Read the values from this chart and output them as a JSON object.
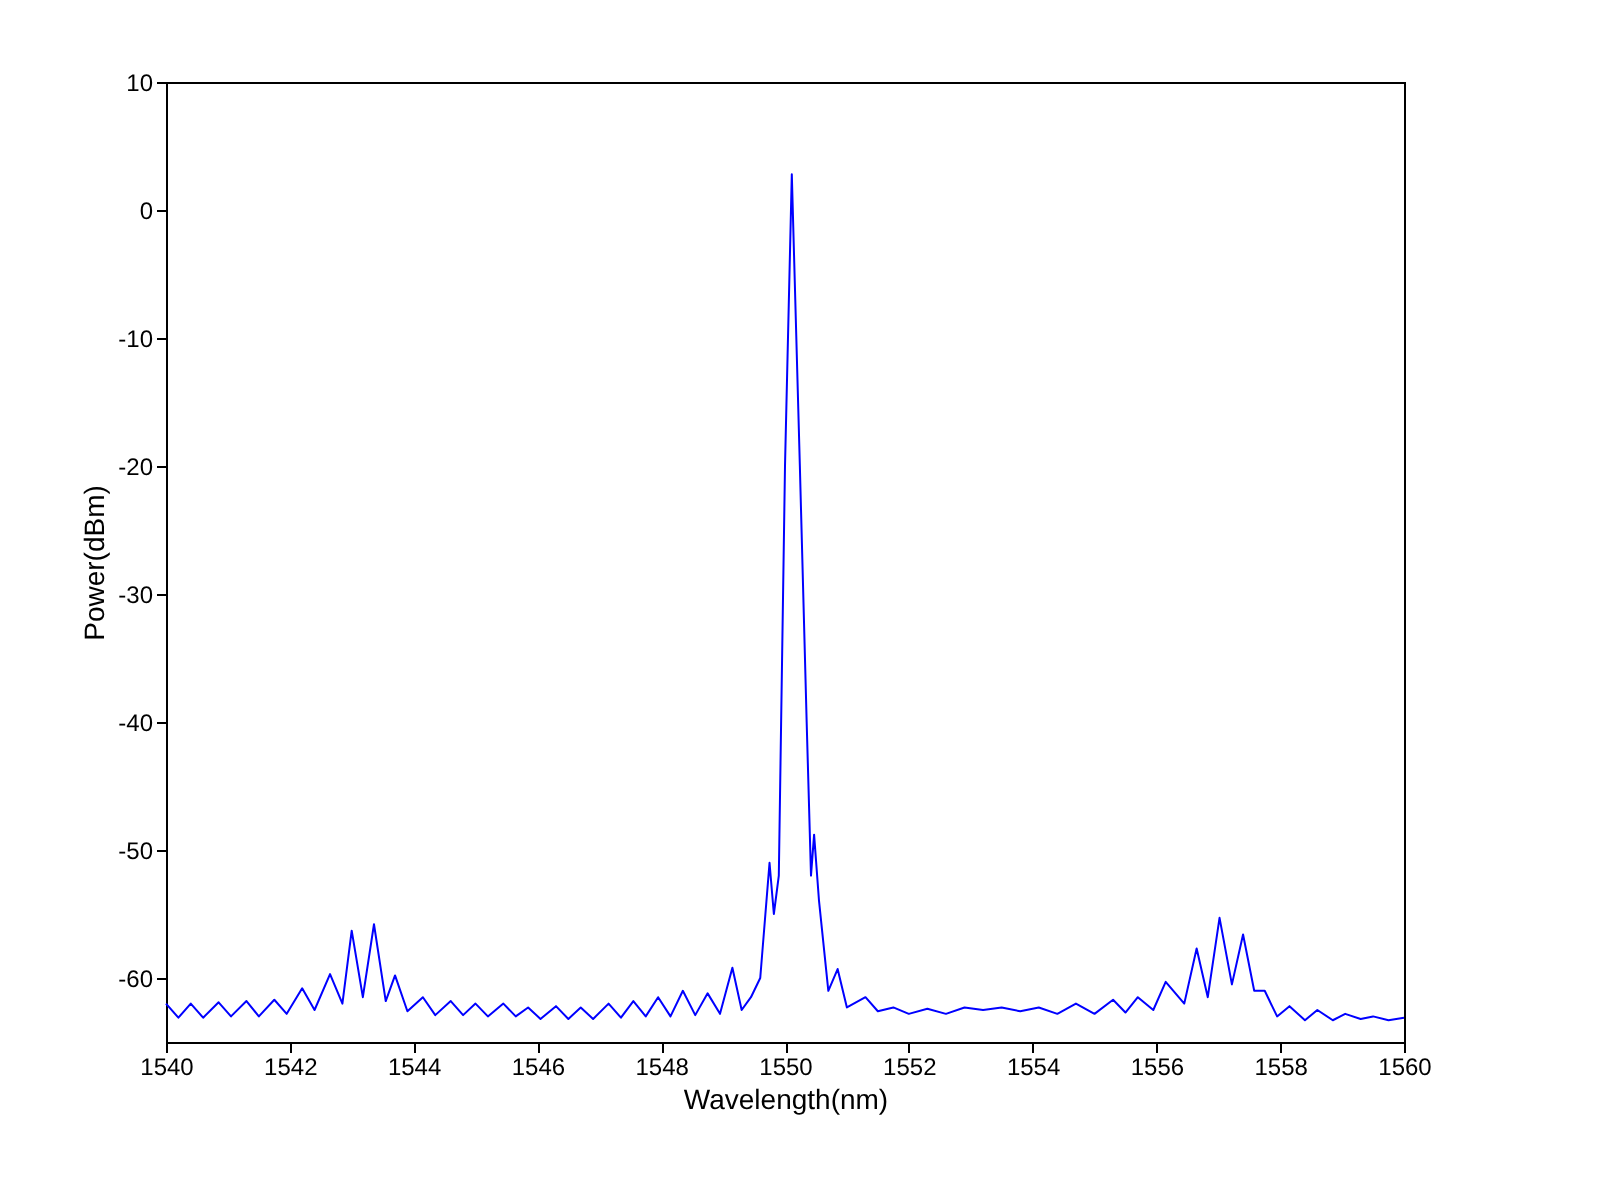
{
  "chart_data": {
    "type": "line",
    "xlabel": "Wavelength(nm)",
    "ylabel": "Power(dBm)",
    "xlim": [
      1540,
      1560
    ],
    "ylim": [
      -65,
      10
    ],
    "xticks": [
      1540,
      1542,
      1544,
      1546,
      1548,
      1550,
      1552,
      1554,
      1556,
      1558,
      1560
    ],
    "yticks": [
      -60,
      -50,
      -40,
      -30,
      -20,
      -10,
      0,
      10
    ],
    "grid": false,
    "marker": "none",
    "line_style": "solid",
    "series": [
      {
        "color": "#0000ff",
        "x": [
          1540.0,
          1540.2,
          1540.4,
          1540.6,
          1540.85,
          1541.05,
          1541.3,
          1541.5,
          1541.75,
          1541.95,
          1542.2,
          1542.4,
          1542.65,
          1542.85,
          1543.0,
          1543.18,
          1543.36,
          1543.55,
          1543.7,
          1543.9,
          1544.15,
          1544.35,
          1544.6,
          1544.8,
          1545.0,
          1545.2,
          1545.45,
          1545.65,
          1545.85,
          1546.05,
          1546.3,
          1546.5,
          1546.7,
          1546.9,
          1547.15,
          1547.35,
          1547.55,
          1547.75,
          1547.95,
          1548.15,
          1548.35,
          1548.55,
          1548.75,
          1548.95,
          1549.15,
          1549.3,
          1549.45,
          1549.6,
          1549.75,
          1549.82,
          1549.9,
          1550.0,
          1550.11,
          1550.24,
          1550.35,
          1550.42,
          1550.47,
          1550.55,
          1550.7,
          1550.85,
          1551.0,
          1551.3,
          1551.5,
          1551.75,
          1552.0,
          1552.3,
          1552.6,
          1552.9,
          1553.2,
          1553.5,
          1553.8,
          1554.1,
          1554.4,
          1554.7,
          1555.0,
          1555.3,
          1555.5,
          1555.7,
          1555.95,
          1556.15,
          1556.45,
          1556.65,
          1556.83,
          1557.02,
          1557.22,
          1557.4,
          1557.58,
          1557.75,
          1557.95,
          1558.15,
          1558.4,
          1558.6,
          1558.85,
          1559.05,
          1559.3,
          1559.5,
          1559.75,
          1560.0
        ],
        "values": [
          -62.0,
          -63.1,
          -62.0,
          -63.1,
          -61.9,
          -63.0,
          -61.8,
          -63.0,
          -61.7,
          -62.8,
          -60.8,
          -62.5,
          -59.7,
          -62.0,
          -56.3,
          -61.5,
          -55.8,
          -61.8,
          -59.8,
          -62.6,
          -61.5,
          -62.9,
          -61.8,
          -62.9,
          -62.0,
          -63.0,
          -62.0,
          -63.0,
          -62.3,
          -63.2,
          -62.2,
          -63.2,
          -62.3,
          -63.2,
          -62.0,
          -63.1,
          -61.8,
          -63.0,
          -61.5,
          -63.0,
          -61.0,
          -62.9,
          -61.2,
          -62.8,
          -59.2,
          -62.5,
          -61.5,
          -60.0,
          -51.0,
          -55.0,
          -52.0,
          -20.0,
          2.8,
          -20.0,
          -40.0,
          -52.0,
          -48.8,
          -54.0,
          -61.0,
          -59.3,
          -62.3,
          -61.5,
          -62.6,
          -62.3,
          -62.8,
          -62.4,
          -62.8,
          -62.3,
          -62.5,
          -62.3,
          -62.6,
          -62.3,
          -62.8,
          -62.0,
          -62.8,
          -61.7,
          -62.7,
          -61.5,
          -62.5,
          -60.3,
          -62.0,
          -57.7,
          -61.5,
          -55.3,
          -60.5,
          -56.6,
          -61.0,
          -61.0,
          -63.0,
          -62.2,
          -63.3,
          -62.5,
          -63.3,
          -62.8,
          -63.2,
          -63.0,
          -63.3,
          -63.1
        ]
      }
    ]
  }
}
